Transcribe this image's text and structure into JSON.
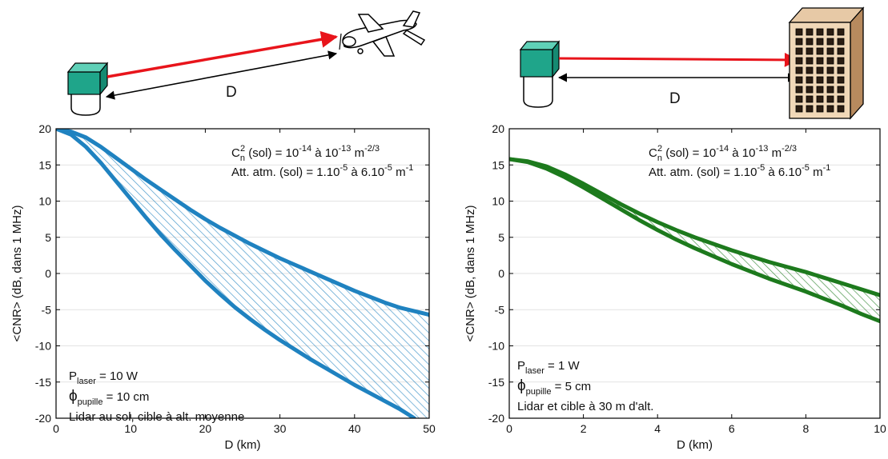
{
  "diagrams": [
    {
      "distance_label": "D",
      "target": "airplane-icon"
    },
    {
      "distance_label": "D",
      "target": "building-icon"
    }
  ],
  "colors": {
    "laser_beam": "#e8141b",
    "lidar_box": "#1fa58a",
    "left_curves": "#1f82c0",
    "right_curves": "#1d7a1d"
  },
  "chart_data": [
    {
      "type": "area",
      "xlabel": "D (km)",
      "ylabel": "<CNR> (dB, dans 1 MHz)",
      "xlim": [
        0,
        50
      ],
      "ylim": [
        -20,
        20
      ],
      "x_ticks": [
        "0",
        "10",
        "20",
        "30",
        "40",
        "50"
      ],
      "y_ticks": [
        "20",
        "15",
        "10",
        "5",
        "0",
        "-5",
        "-10",
        "-15",
        "-20"
      ],
      "grid": true,
      "fill_pattern": "hatched",
      "series": [
        {
          "points": [
            [
              0,
              20
            ],
            [
              2,
              19.6
            ],
            [
              4,
              18.8
            ],
            [
              6,
              17.5
            ],
            [
              8,
              16
            ],
            [
              10,
              14.5
            ],
            [
              12,
              13
            ],
            [
              14,
              11.6
            ],
            [
              16,
              10.2
            ],
            [
              18,
              8.8
            ],
            [
              20,
              7.5
            ],
            [
              22,
              6.3
            ],
            [
              24,
              5.2
            ],
            [
              26,
              4.1
            ],
            [
              28,
              3.1
            ],
            [
              30,
              2.1
            ],
            [
              32,
              1.2
            ],
            [
              34,
              0.3
            ],
            [
              36,
              -0.6
            ],
            [
              38,
              -1.5
            ],
            [
              40,
              -2.4
            ],
            [
              42,
              -3.2
            ],
            [
              44,
              -4
            ],
            [
              46,
              -4.7
            ],
            [
              48,
              -5.2
            ],
            [
              50,
              -5.7
            ]
          ]
        },
        {
          "points": [
            [
              0,
              20
            ],
            [
              2,
              19.2
            ],
            [
              4,
              17.5
            ],
            [
              6,
              15.3
            ],
            [
              8,
              12.8
            ],
            [
              10,
              10.3
            ],
            [
              12,
              7.8
            ],
            [
              14,
              5.4
            ],
            [
              16,
              3.2
            ],
            [
              18,
              1.1
            ],
            [
              20,
              -1
            ],
            [
              22,
              -2.9
            ],
            [
              24,
              -4.7
            ],
            [
              26,
              -6.3
            ],
            [
              28,
              -7.8
            ],
            [
              30,
              -9.2
            ],
            [
              32,
              -10.5
            ],
            [
              34,
              -11.8
            ],
            [
              36,
              -13
            ],
            [
              38,
              -14.2
            ],
            [
              40,
              -15.4
            ],
            [
              42,
              -16.5
            ],
            [
              44,
              -17.6
            ],
            [
              46,
              -18.7
            ],
            [
              48,
              -20
            ]
          ]
        }
      ],
      "annotations": [
        {
          "parts": [
            [
              "C",
              "n",
              "2",
              " (sol) = 10",
              "-14",
              " à 10",
              "-13",
              " m",
              "-2/3"
            ]
          ],
          "text": "Cn2 (sol) = 10-14 à 10-13 m-2/3"
        },
        {
          "text": "Att. atm. (sol) = 1.10-5 à 6.10-5 m-1"
        }
      ],
      "params": {
        "p_laser_sub": "laser",
        "p_laser_value": " = 10 W",
        "phi_sub": "pupille",
        "phi_value": " = 10 cm",
        "scenario": "Lidar au sol, cible à alt. moyenne"
      },
      "cn2_exp1": "-14",
      "cn2_exp2": "-13",
      "cn2_unit_exp": "-2/3",
      "att_exp1": "-5",
      "att_exp2": "-5",
      "att_unit_exp": "-1"
    },
    {
      "type": "area",
      "xlabel": "D (km)",
      "ylabel": "<CNR> (dB, dans 1 MHz)",
      "xlim": [
        0,
        10
      ],
      "ylim": [
        -20,
        20
      ],
      "x_ticks": [
        "0",
        "2",
        "4",
        "6",
        "8",
        "10"
      ],
      "y_ticks": [
        "20",
        "15",
        "10",
        "5",
        "0",
        "-5",
        "-10",
        "-15",
        "-20"
      ],
      "grid": true,
      "fill_pattern": "hatched",
      "series": [
        {
          "points": [
            [
              0,
              15.8
            ],
            [
              0.5,
              15.5
            ],
            [
              1,
              14.8
            ],
            [
              1.5,
              13.7
            ],
            [
              2,
              12.4
            ],
            [
              2.5,
              11
            ],
            [
              3,
              9.6
            ],
            [
              3.5,
              8.3
            ],
            [
              4,
              7.1
            ],
            [
              4.5,
              6
            ],
            [
              5,
              5
            ],
            [
              5.5,
              4.1
            ],
            [
              6,
              3.2
            ],
            [
              6.5,
              2.4
            ],
            [
              7,
              1.6
            ],
            [
              7.5,
              0.9
            ],
            [
              8,
              0.2
            ],
            [
              8.5,
              -0.6
            ],
            [
              9,
              -1.4
            ],
            [
              9.5,
              -2.2
            ],
            [
              10,
              -3
            ]
          ]
        },
        {
          "points": [
            [
              0,
              15.8
            ],
            [
              0.5,
              15.4
            ],
            [
              1,
              14.5
            ],
            [
              1.5,
              13.3
            ],
            [
              2,
              11.9
            ],
            [
              2.5,
              10.4
            ],
            [
              3,
              8.9
            ],
            [
              3.5,
              7.4
            ],
            [
              4,
              6
            ],
            [
              4.5,
              4.7
            ],
            [
              5,
              3.5
            ],
            [
              5.5,
              2.4
            ],
            [
              6,
              1.3
            ],
            [
              6.5,
              0.3
            ],
            [
              7,
              -0.7
            ],
            [
              7.5,
              -1.6
            ],
            [
              8,
              -2.5
            ],
            [
              8.5,
              -3.5
            ],
            [
              9,
              -4.5
            ],
            [
              9.5,
              -5.6
            ],
            [
              10,
              -6.6
            ]
          ]
        }
      ],
      "params": {
        "p_laser_sub": "laser",
        "p_laser_value": " = 1 W",
        "phi_sub": "pupille",
        "phi_value": " = 5 cm",
        "scenario": "Lidar et cible à 30 m d'alt."
      },
      "cn2_exp1": "-14",
      "cn2_exp2": "-13",
      "cn2_unit_exp": "-2/3",
      "att_exp1": "-5",
      "att_exp2": "-5",
      "att_unit_exp": "-1"
    }
  ]
}
